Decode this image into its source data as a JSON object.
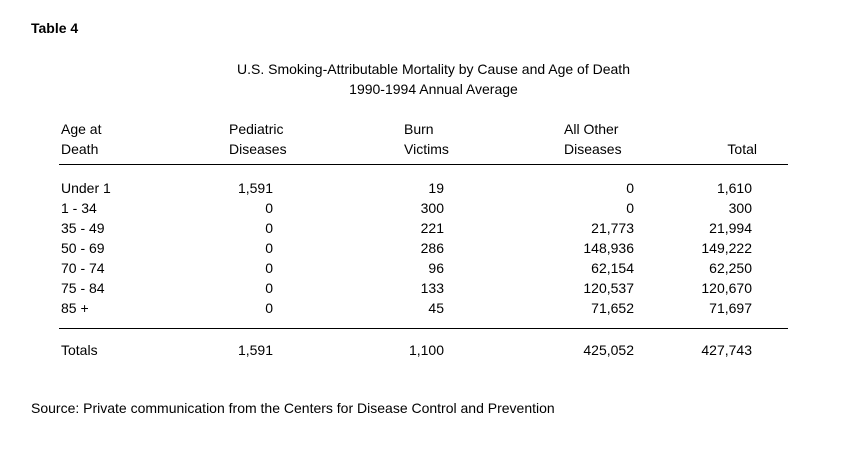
{
  "table_label": "Table 4",
  "title": "U.S. Smoking-Attributable Mortality by Cause and Age of Death",
  "subtitle": "1990-1994 Annual Average",
  "headers": {
    "age": [
      "Age at",
      "Death"
    ],
    "pediatric": [
      "Pediatric",
      "Diseases"
    ],
    "burn": [
      "Burn",
      "Victims"
    ],
    "other": [
      "All Other",
      "Diseases"
    ],
    "total": [
      "",
      "Total"
    ]
  },
  "rows": [
    {
      "age": "Under 1",
      "pediatric": "1,591",
      "burn": "19",
      "other": "0",
      "total": "1,610"
    },
    {
      "age": "1 - 34",
      "pediatric": "0",
      "burn": "300",
      "other": "0",
      "total": "300"
    },
    {
      "age": "35 - 49",
      "pediatric": "0",
      "burn": "221",
      "other": "21,773",
      "total": "21,994"
    },
    {
      "age": "50 - 69",
      "pediatric": "0",
      "burn": "286",
      "other": "148,936",
      "total": "149,222"
    },
    {
      "age": "70 - 74",
      "pediatric": "0",
      "burn": "96",
      "other": "62,154",
      "total": "62,250"
    },
    {
      "age": "75 - 84",
      "pediatric": "0",
      "burn": "133",
      "other": "120,537",
      "total": "120,670"
    },
    {
      "age": "85 +",
      "pediatric": "0",
      "burn": "45",
      "other": "71,652",
      "total": "71,697"
    }
  ],
  "totals": {
    "age": "Totals",
    "pediatric": "1,591",
    "burn": "1,100",
    "other": "425,052",
    "total": "427,743"
  },
  "source": "Source: Private communication from the Centers for Disease Control and Prevention"
}
